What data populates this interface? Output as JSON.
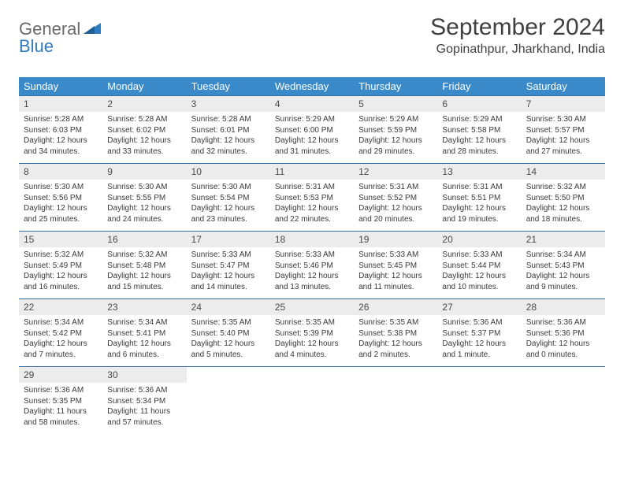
{
  "logo": {
    "part1": "General",
    "part2": "Blue"
  },
  "title": "September 2024",
  "location": "Gopinathpur, Jharkhand, India",
  "colors": {
    "header_bg": "#3a8ac9",
    "header_text": "#ffffff",
    "daynum_bg": "#ececec",
    "border": "#2f6fa8",
    "logo_gray": "#6a6a6a",
    "logo_blue": "#2f7bbf",
    "body_text": "#3a3a3a"
  },
  "daysOfWeek": [
    "Sunday",
    "Monday",
    "Tuesday",
    "Wednesday",
    "Thursday",
    "Friday",
    "Saturday"
  ],
  "weeks": [
    [
      {
        "n": "1",
        "sr": "Sunrise: 5:28 AM",
        "ss": "Sunset: 6:03 PM",
        "dl": "Daylight: 12 hours and 34 minutes."
      },
      {
        "n": "2",
        "sr": "Sunrise: 5:28 AM",
        "ss": "Sunset: 6:02 PM",
        "dl": "Daylight: 12 hours and 33 minutes."
      },
      {
        "n": "3",
        "sr": "Sunrise: 5:28 AM",
        "ss": "Sunset: 6:01 PM",
        "dl": "Daylight: 12 hours and 32 minutes."
      },
      {
        "n": "4",
        "sr": "Sunrise: 5:29 AM",
        "ss": "Sunset: 6:00 PM",
        "dl": "Daylight: 12 hours and 31 minutes."
      },
      {
        "n": "5",
        "sr": "Sunrise: 5:29 AM",
        "ss": "Sunset: 5:59 PM",
        "dl": "Daylight: 12 hours and 29 minutes."
      },
      {
        "n": "6",
        "sr": "Sunrise: 5:29 AM",
        "ss": "Sunset: 5:58 PM",
        "dl": "Daylight: 12 hours and 28 minutes."
      },
      {
        "n": "7",
        "sr": "Sunrise: 5:30 AM",
        "ss": "Sunset: 5:57 PM",
        "dl": "Daylight: 12 hours and 27 minutes."
      }
    ],
    [
      {
        "n": "8",
        "sr": "Sunrise: 5:30 AM",
        "ss": "Sunset: 5:56 PM",
        "dl": "Daylight: 12 hours and 25 minutes."
      },
      {
        "n": "9",
        "sr": "Sunrise: 5:30 AM",
        "ss": "Sunset: 5:55 PM",
        "dl": "Daylight: 12 hours and 24 minutes."
      },
      {
        "n": "10",
        "sr": "Sunrise: 5:30 AM",
        "ss": "Sunset: 5:54 PM",
        "dl": "Daylight: 12 hours and 23 minutes."
      },
      {
        "n": "11",
        "sr": "Sunrise: 5:31 AM",
        "ss": "Sunset: 5:53 PM",
        "dl": "Daylight: 12 hours and 22 minutes."
      },
      {
        "n": "12",
        "sr": "Sunrise: 5:31 AM",
        "ss": "Sunset: 5:52 PM",
        "dl": "Daylight: 12 hours and 20 minutes."
      },
      {
        "n": "13",
        "sr": "Sunrise: 5:31 AM",
        "ss": "Sunset: 5:51 PM",
        "dl": "Daylight: 12 hours and 19 minutes."
      },
      {
        "n": "14",
        "sr": "Sunrise: 5:32 AM",
        "ss": "Sunset: 5:50 PM",
        "dl": "Daylight: 12 hours and 18 minutes."
      }
    ],
    [
      {
        "n": "15",
        "sr": "Sunrise: 5:32 AM",
        "ss": "Sunset: 5:49 PM",
        "dl": "Daylight: 12 hours and 16 minutes."
      },
      {
        "n": "16",
        "sr": "Sunrise: 5:32 AM",
        "ss": "Sunset: 5:48 PM",
        "dl": "Daylight: 12 hours and 15 minutes."
      },
      {
        "n": "17",
        "sr": "Sunrise: 5:33 AM",
        "ss": "Sunset: 5:47 PM",
        "dl": "Daylight: 12 hours and 14 minutes."
      },
      {
        "n": "18",
        "sr": "Sunrise: 5:33 AM",
        "ss": "Sunset: 5:46 PM",
        "dl": "Daylight: 12 hours and 13 minutes."
      },
      {
        "n": "19",
        "sr": "Sunrise: 5:33 AM",
        "ss": "Sunset: 5:45 PM",
        "dl": "Daylight: 12 hours and 11 minutes."
      },
      {
        "n": "20",
        "sr": "Sunrise: 5:33 AM",
        "ss": "Sunset: 5:44 PM",
        "dl": "Daylight: 12 hours and 10 minutes."
      },
      {
        "n": "21",
        "sr": "Sunrise: 5:34 AM",
        "ss": "Sunset: 5:43 PM",
        "dl": "Daylight: 12 hours and 9 minutes."
      }
    ],
    [
      {
        "n": "22",
        "sr": "Sunrise: 5:34 AM",
        "ss": "Sunset: 5:42 PM",
        "dl": "Daylight: 12 hours and 7 minutes."
      },
      {
        "n": "23",
        "sr": "Sunrise: 5:34 AM",
        "ss": "Sunset: 5:41 PM",
        "dl": "Daylight: 12 hours and 6 minutes."
      },
      {
        "n": "24",
        "sr": "Sunrise: 5:35 AM",
        "ss": "Sunset: 5:40 PM",
        "dl": "Daylight: 12 hours and 5 minutes."
      },
      {
        "n": "25",
        "sr": "Sunrise: 5:35 AM",
        "ss": "Sunset: 5:39 PM",
        "dl": "Daylight: 12 hours and 4 minutes."
      },
      {
        "n": "26",
        "sr": "Sunrise: 5:35 AM",
        "ss": "Sunset: 5:38 PM",
        "dl": "Daylight: 12 hours and 2 minutes."
      },
      {
        "n": "27",
        "sr": "Sunrise: 5:36 AM",
        "ss": "Sunset: 5:37 PM",
        "dl": "Daylight: 12 hours and 1 minute."
      },
      {
        "n": "28",
        "sr": "Sunrise: 5:36 AM",
        "ss": "Sunset: 5:36 PM",
        "dl": "Daylight: 12 hours and 0 minutes."
      }
    ],
    [
      {
        "n": "29",
        "sr": "Sunrise: 5:36 AM",
        "ss": "Sunset: 5:35 PM",
        "dl": "Daylight: 11 hours and 58 minutes."
      },
      {
        "n": "30",
        "sr": "Sunrise: 5:36 AM",
        "ss": "Sunset: 5:34 PM",
        "dl": "Daylight: 11 hours and 57 minutes."
      },
      null,
      null,
      null,
      null,
      null
    ]
  ]
}
